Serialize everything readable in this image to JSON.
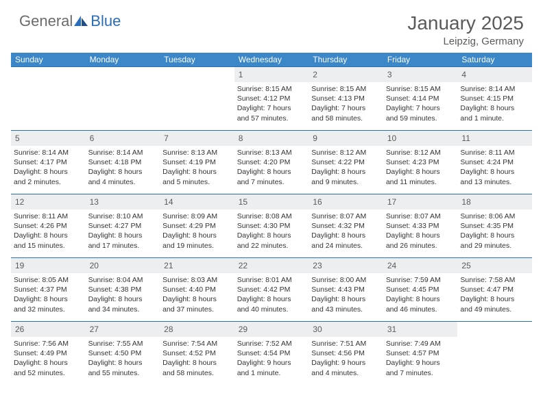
{
  "brand": {
    "text_gray": "General",
    "text_blue": "Blue"
  },
  "title": "January 2025",
  "location": "Leipzig, Germany",
  "colors": {
    "header_blue": "#3b87c8",
    "rule_blue": "#2a6db8",
    "daynum_bg": "#eceef0",
    "text_gray": "#5a5a5a",
    "logo_gray": "#6b6b6b"
  },
  "days_of_week": [
    "Sunday",
    "Monday",
    "Tuesday",
    "Wednesday",
    "Thursday",
    "Friday",
    "Saturday"
  ],
  "weeks": [
    [
      {
        "n": "",
        "sunrise": "",
        "sunset": "",
        "day1": "",
        "day2": ""
      },
      {
        "n": "",
        "sunrise": "",
        "sunset": "",
        "day1": "",
        "day2": ""
      },
      {
        "n": "",
        "sunrise": "",
        "sunset": "",
        "day1": "",
        "day2": ""
      },
      {
        "n": "1",
        "sunrise": "Sunrise: 8:15 AM",
        "sunset": "Sunset: 4:12 PM",
        "day1": "Daylight: 7 hours",
        "day2": "and 57 minutes."
      },
      {
        "n": "2",
        "sunrise": "Sunrise: 8:15 AM",
        "sunset": "Sunset: 4:13 PM",
        "day1": "Daylight: 7 hours",
        "day2": "and 58 minutes."
      },
      {
        "n": "3",
        "sunrise": "Sunrise: 8:15 AM",
        "sunset": "Sunset: 4:14 PM",
        "day1": "Daylight: 7 hours",
        "day2": "and 59 minutes."
      },
      {
        "n": "4",
        "sunrise": "Sunrise: 8:14 AM",
        "sunset": "Sunset: 4:15 PM",
        "day1": "Daylight: 8 hours",
        "day2": "and 1 minute."
      }
    ],
    [
      {
        "n": "5",
        "sunrise": "Sunrise: 8:14 AM",
        "sunset": "Sunset: 4:17 PM",
        "day1": "Daylight: 8 hours",
        "day2": "and 2 minutes."
      },
      {
        "n": "6",
        "sunrise": "Sunrise: 8:14 AM",
        "sunset": "Sunset: 4:18 PM",
        "day1": "Daylight: 8 hours",
        "day2": "and 4 minutes."
      },
      {
        "n": "7",
        "sunrise": "Sunrise: 8:13 AM",
        "sunset": "Sunset: 4:19 PM",
        "day1": "Daylight: 8 hours",
        "day2": "and 5 minutes."
      },
      {
        "n": "8",
        "sunrise": "Sunrise: 8:13 AM",
        "sunset": "Sunset: 4:20 PM",
        "day1": "Daylight: 8 hours",
        "day2": "and 7 minutes."
      },
      {
        "n": "9",
        "sunrise": "Sunrise: 8:12 AM",
        "sunset": "Sunset: 4:22 PM",
        "day1": "Daylight: 8 hours",
        "day2": "and 9 minutes."
      },
      {
        "n": "10",
        "sunrise": "Sunrise: 8:12 AM",
        "sunset": "Sunset: 4:23 PM",
        "day1": "Daylight: 8 hours",
        "day2": "and 11 minutes."
      },
      {
        "n": "11",
        "sunrise": "Sunrise: 8:11 AM",
        "sunset": "Sunset: 4:24 PM",
        "day1": "Daylight: 8 hours",
        "day2": "and 13 minutes."
      }
    ],
    [
      {
        "n": "12",
        "sunrise": "Sunrise: 8:11 AM",
        "sunset": "Sunset: 4:26 PM",
        "day1": "Daylight: 8 hours",
        "day2": "and 15 minutes."
      },
      {
        "n": "13",
        "sunrise": "Sunrise: 8:10 AM",
        "sunset": "Sunset: 4:27 PM",
        "day1": "Daylight: 8 hours",
        "day2": "and 17 minutes."
      },
      {
        "n": "14",
        "sunrise": "Sunrise: 8:09 AM",
        "sunset": "Sunset: 4:29 PM",
        "day1": "Daylight: 8 hours",
        "day2": "and 19 minutes."
      },
      {
        "n": "15",
        "sunrise": "Sunrise: 8:08 AM",
        "sunset": "Sunset: 4:30 PM",
        "day1": "Daylight: 8 hours",
        "day2": "and 22 minutes."
      },
      {
        "n": "16",
        "sunrise": "Sunrise: 8:07 AM",
        "sunset": "Sunset: 4:32 PM",
        "day1": "Daylight: 8 hours",
        "day2": "and 24 minutes."
      },
      {
        "n": "17",
        "sunrise": "Sunrise: 8:07 AM",
        "sunset": "Sunset: 4:33 PM",
        "day1": "Daylight: 8 hours",
        "day2": "and 26 minutes."
      },
      {
        "n": "18",
        "sunrise": "Sunrise: 8:06 AM",
        "sunset": "Sunset: 4:35 PM",
        "day1": "Daylight: 8 hours",
        "day2": "and 29 minutes."
      }
    ],
    [
      {
        "n": "19",
        "sunrise": "Sunrise: 8:05 AM",
        "sunset": "Sunset: 4:37 PM",
        "day1": "Daylight: 8 hours",
        "day2": "and 32 minutes."
      },
      {
        "n": "20",
        "sunrise": "Sunrise: 8:04 AM",
        "sunset": "Sunset: 4:38 PM",
        "day1": "Daylight: 8 hours",
        "day2": "and 34 minutes."
      },
      {
        "n": "21",
        "sunrise": "Sunrise: 8:03 AM",
        "sunset": "Sunset: 4:40 PM",
        "day1": "Daylight: 8 hours",
        "day2": "and 37 minutes."
      },
      {
        "n": "22",
        "sunrise": "Sunrise: 8:01 AM",
        "sunset": "Sunset: 4:42 PM",
        "day1": "Daylight: 8 hours",
        "day2": "and 40 minutes."
      },
      {
        "n": "23",
        "sunrise": "Sunrise: 8:00 AM",
        "sunset": "Sunset: 4:43 PM",
        "day1": "Daylight: 8 hours",
        "day2": "and 43 minutes."
      },
      {
        "n": "24",
        "sunrise": "Sunrise: 7:59 AM",
        "sunset": "Sunset: 4:45 PM",
        "day1": "Daylight: 8 hours",
        "day2": "and 46 minutes."
      },
      {
        "n": "25",
        "sunrise": "Sunrise: 7:58 AM",
        "sunset": "Sunset: 4:47 PM",
        "day1": "Daylight: 8 hours",
        "day2": "and 49 minutes."
      }
    ],
    [
      {
        "n": "26",
        "sunrise": "Sunrise: 7:56 AM",
        "sunset": "Sunset: 4:49 PM",
        "day1": "Daylight: 8 hours",
        "day2": "and 52 minutes."
      },
      {
        "n": "27",
        "sunrise": "Sunrise: 7:55 AM",
        "sunset": "Sunset: 4:50 PM",
        "day1": "Daylight: 8 hours",
        "day2": "and 55 minutes."
      },
      {
        "n": "28",
        "sunrise": "Sunrise: 7:54 AM",
        "sunset": "Sunset: 4:52 PM",
        "day1": "Daylight: 8 hours",
        "day2": "and 58 minutes."
      },
      {
        "n": "29",
        "sunrise": "Sunrise: 7:52 AM",
        "sunset": "Sunset: 4:54 PM",
        "day1": "Daylight: 9 hours",
        "day2": "and 1 minute."
      },
      {
        "n": "30",
        "sunrise": "Sunrise: 7:51 AM",
        "sunset": "Sunset: 4:56 PM",
        "day1": "Daylight: 9 hours",
        "day2": "and 4 minutes."
      },
      {
        "n": "31",
        "sunrise": "Sunrise: 7:49 AM",
        "sunset": "Sunset: 4:57 PM",
        "day1": "Daylight: 9 hours",
        "day2": "and 7 minutes."
      },
      {
        "n": "",
        "sunrise": "",
        "sunset": "",
        "day1": "",
        "day2": ""
      }
    ]
  ]
}
